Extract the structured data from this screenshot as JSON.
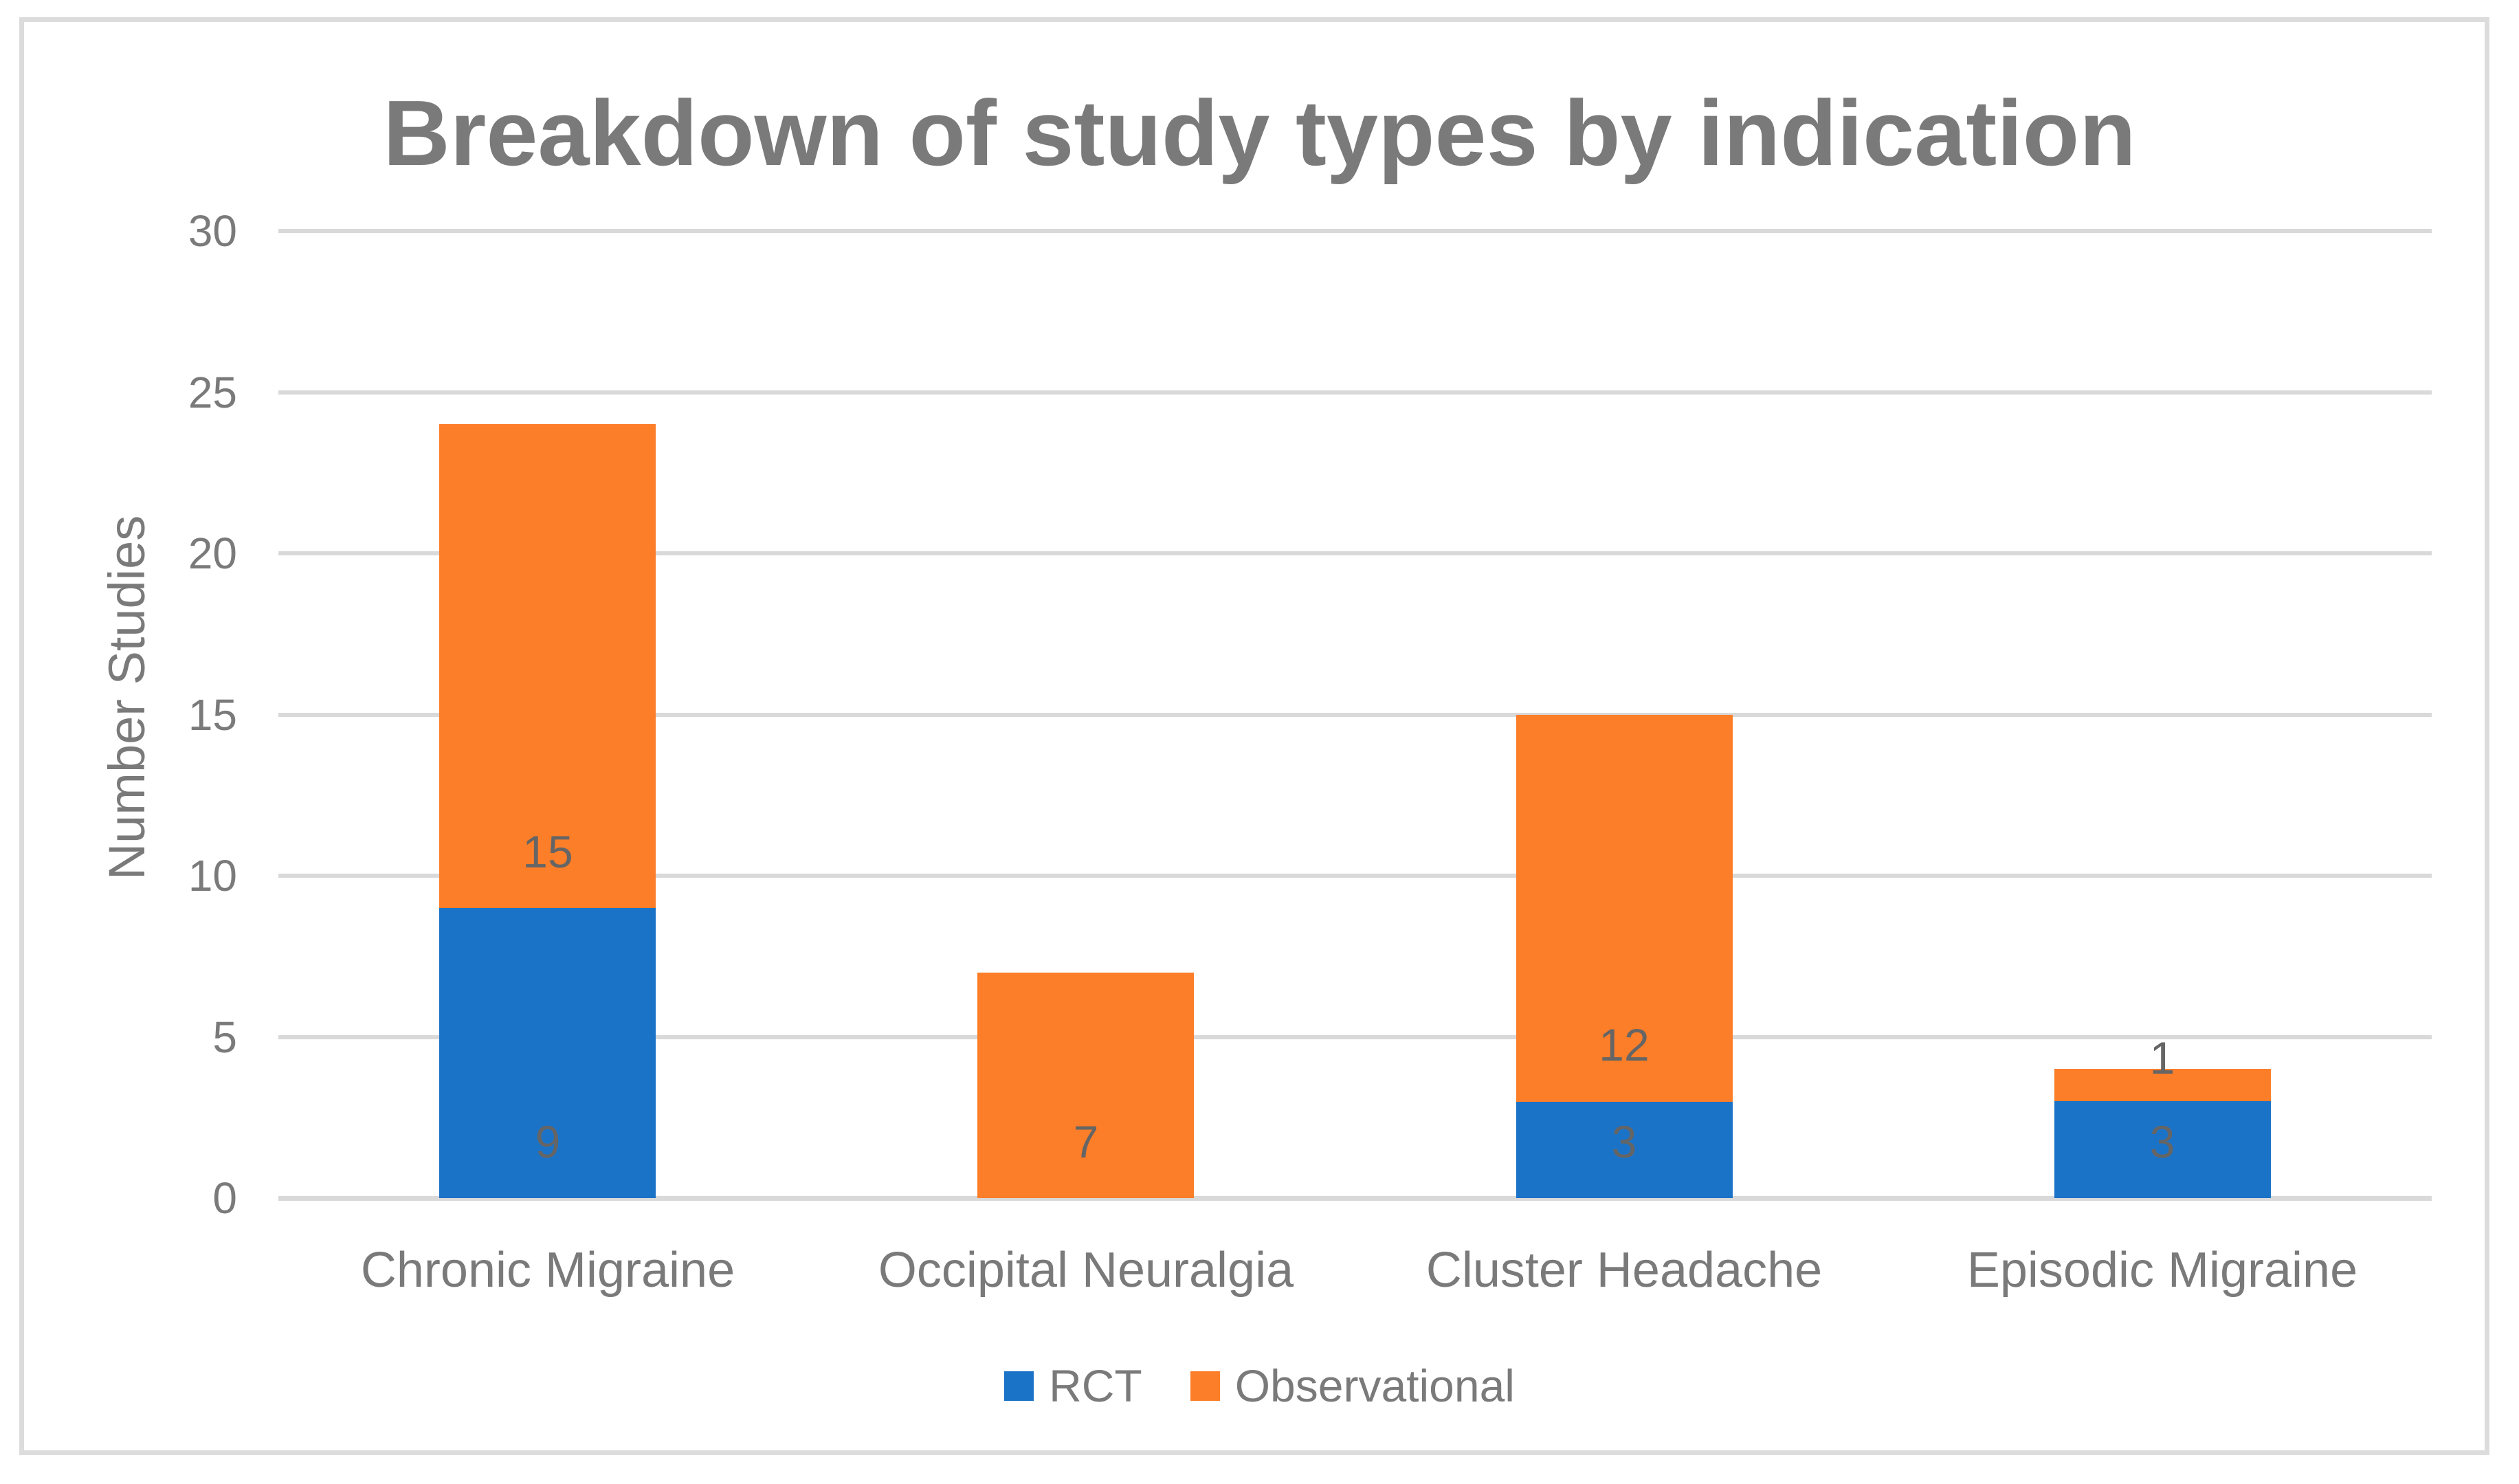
{
  "chart_data": {
    "type": "bar",
    "stacked": true,
    "title": "Breakdown of study types by indication",
    "categories": [
      "Chronic Migraine",
      "Occipital Neuralgia",
      "Cluster Headache",
      "Episodic Migraine"
    ],
    "series": [
      {
        "name": "RCT",
        "color": "#1B73C8",
        "values": [
          9,
          0,
          3,
          3
        ]
      },
      {
        "name": "Observational",
        "color": "#FC7E29",
        "values": [
          15,
          7,
          12,
          1
        ]
      }
    ],
    "data_labels": {
      "RCT": [
        "9",
        "",
        "3",
        "3"
      ],
      "Observational": [
        "15",
        "7",
        "12",
        "1"
      ]
    },
    "xlabel": "",
    "ylabel": "Number Studies",
    "ylim": [
      0,
      30
    ],
    "yticks": [
      "0",
      "5",
      "10",
      "15",
      "20",
      "25",
      "30"
    ],
    "ytick_step": 5,
    "grid": true,
    "legend_position": "bottom"
  },
  "styles": {
    "grid_color": "#D9D9D9",
    "axis_line_color": "#D9D9D9",
    "border_color": "#DCDCDC",
    "text_color": "#7A7A7A",
    "data_label_color": "#656565",
    "background": "#FFFFFF"
  }
}
